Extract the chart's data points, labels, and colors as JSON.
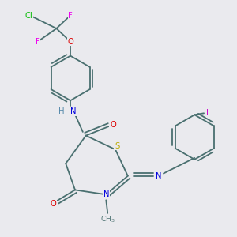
{
  "bg_color": "#eaeaee",
  "bond_color": "#4a7070",
  "atom_colors": {
    "N": "#0000dd",
    "O": "#dd0000",
    "S": "#bbaa00",
    "Cl": "#00bb00",
    "F": "#ee00ee",
    "I": "#cc00cc",
    "H": "#5588aa",
    "C": "#4a7070"
  }
}
